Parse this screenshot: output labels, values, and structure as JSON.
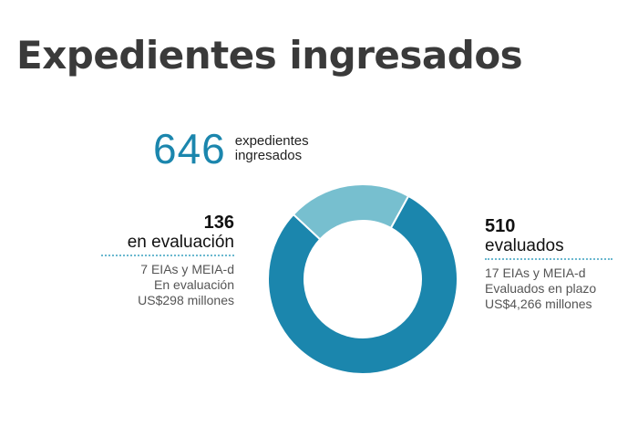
{
  "title": "Expedientes ingresados",
  "total": {
    "value": "646",
    "label_line1": "expedientes",
    "label_line2": "ingresados"
  },
  "left": {
    "value": "136",
    "label": "en evaluación",
    "line1": "7 EIAs y MEIA-d",
    "line2": "En evaluación",
    "line3": "US$298 millones"
  },
  "right": {
    "value": "510",
    "label": "evaluados",
    "line1": "17 EIAs y MEIA-d",
    "line2": "Evaluados en plazo",
    "line3": "US$4,266 millones"
  },
  "colors": {
    "evaluados": "#1b86ad",
    "en_evaluacion": "#77bfcf"
  },
  "chart_data": {
    "type": "pie",
    "donut": true,
    "categories": [
      "evaluados",
      "en evaluación"
    ],
    "values": [
      510,
      136
    ]
  }
}
